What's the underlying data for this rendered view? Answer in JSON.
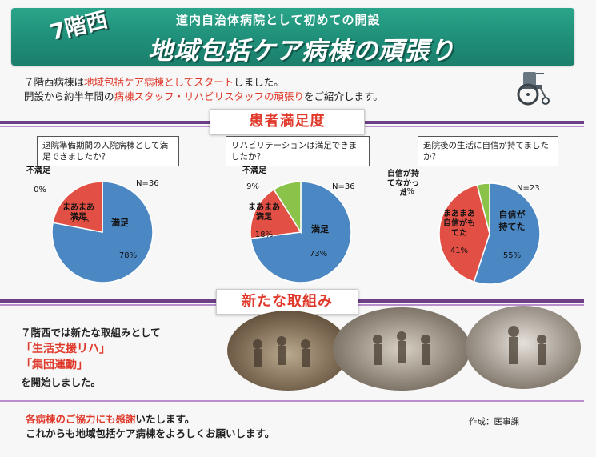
{
  "header": {
    "subtitle": "道内自治体病院として初めての開設",
    "floor_badge": "7階西",
    "title": "地域包括ケア病棟の頑張り"
  },
  "intro": {
    "line1_a": "７階西病棟は",
    "line1_b": "地域包括ケア病棟としてスタート",
    "line1_c": "しました。",
    "line2_a": "開設から約半年間の",
    "line2_b": "病棟スタッフ・リハビリスタッフの頑張り",
    "line2_c": "をご紹介します。"
  },
  "section_satisfaction": {
    "label": "患者満足度"
  },
  "section_new": {
    "label": "新たな取組み"
  },
  "surveys": [
    {
      "question": "退院準備期間の入院病棟として満足できましたか？",
      "n_label": "N=36",
      "slices": [
        {
          "label": "満足",
          "value": 78,
          "pct": "78%",
          "color": "#4b87c2"
        },
        {
          "label": "まあまあ満足",
          "value": 22,
          "pct": "22%",
          "color": "#e25045"
        },
        {
          "label": "不満足",
          "value": 0,
          "pct": "0%",
          "color": "#8bc34a"
        }
      ]
    },
    {
      "question": "リハビリテーションは満足できましたか？",
      "n_label": "N=36",
      "slices": [
        {
          "label": "満足",
          "value": 73,
          "pct": "73%",
          "color": "#4b87c2"
        },
        {
          "label": "まあまあ満足",
          "value": 18,
          "pct": "18%",
          "color": "#e25045"
        },
        {
          "label": "不満足",
          "value": 9,
          "pct": "9%",
          "color": "#8bc34a"
        }
      ]
    },
    {
      "question": "退院後の生活に自信が持てましたか？",
      "n_label": "N=23",
      "slices": [
        {
          "label": "自信が持てた",
          "value": 55,
          "pct": "55%",
          "color": "#4b87c2"
        },
        {
          "label": "まあまあ自信がもてた",
          "value": 41,
          "pct": "41%",
          "color": "#e25045"
        },
        {
          "label": "自信が持てなかった",
          "value": 4,
          "pct": "4%",
          "color": "#8bc34a"
        }
      ]
    }
  ],
  "chart_data": [
    {
      "type": "pie",
      "title": "退院準備期間の入院病棟として満足できましたか？",
      "categories": [
        "満足",
        "まあまあ満足",
        "不満足"
      ],
      "values": [
        78,
        22,
        0
      ]
    },
    {
      "type": "pie",
      "title": "リハビリテーションは満足できましたか？",
      "categories": [
        "満足",
        "まあまあ満足",
        "不満足"
      ],
      "values": [
        73,
        18,
        9
      ]
    },
    {
      "type": "pie",
      "title": "退院後の生活に自信が持てましたか？",
      "categories": [
        "自信が持てた",
        "まあまあ自信がもてた",
        "自信が持てなかった"
      ],
      "values": [
        55,
        41,
        4
      ]
    }
  ],
  "initiatives": {
    "intro": "７階西では新たな取組みとして",
    "item1": "「生活支援リハ」",
    "item2": "「集団運動」",
    "outro": "を開始しました。"
  },
  "footer": {
    "thanks_red": "各病棟のご協力にも感謝",
    "thanks_rest": "いたします。",
    "request": "これからも地域包括ケア病棟をよろしくお願いします。",
    "author": "作成：医事課"
  },
  "icons": {
    "wheelchair": "wheelchair-icon",
    "photos": "rehab-photos"
  }
}
